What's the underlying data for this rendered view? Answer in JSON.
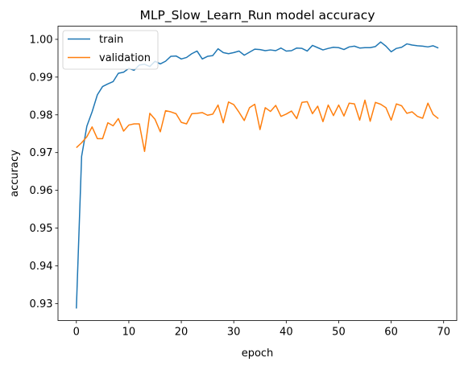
{
  "chart_data": {
    "type": "line",
    "title": "MLP_Slow_Learn_Run model accuracy",
    "xlabel": "epoch",
    "ylabel": "accuracy",
    "xlim": [
      -3.5,
      72.5
    ],
    "ylim": [
      0.9255,
      1.0035
    ],
    "xticks": [
      0,
      10,
      20,
      30,
      40,
      50,
      60,
      70
    ],
    "yticks": [
      0.93,
      0.94,
      0.95,
      0.96,
      0.97,
      0.98,
      0.99,
      1.0
    ],
    "ytick_labels": [
      "0.93",
      "0.94",
      "0.95",
      "0.96",
      "0.97",
      "0.98",
      "0.99",
      "1.00"
    ],
    "grid": false,
    "legend_position": "top-left",
    "x": [
      0,
      1,
      2,
      3,
      4,
      5,
      6,
      7,
      8,
      9,
      10,
      11,
      12,
      13,
      14,
      15,
      16,
      17,
      18,
      19,
      20,
      21,
      22,
      23,
      24,
      25,
      26,
      27,
      28,
      29,
      30,
      31,
      32,
      33,
      34,
      35,
      36,
      37,
      38,
      39,
      40,
      41,
      42,
      43,
      44,
      45,
      46,
      47,
      48,
      49,
      50,
      51,
      52,
      53,
      54,
      55,
      56,
      57,
      58,
      59,
      60,
      61,
      62,
      63,
      64,
      65,
      66,
      67,
      68,
      69
    ],
    "series": [
      {
        "name": "train",
        "color": "#1f77b4",
        "values": [
          0.9287,
          0.969,
          0.977,
          0.9808,
          0.9853,
          0.9875,
          0.9882,
          0.9888,
          0.991,
          0.9913,
          0.9923,
          0.9918,
          0.9932,
          0.9934,
          0.9928,
          0.9942,
          0.9935,
          0.9942,
          0.9955,
          0.9956,
          0.9948,
          0.9952,
          0.9962,
          0.9969,
          0.9948,
          0.9955,
          0.9957,
          0.9975,
          0.9965,
          0.9962,
          0.9965,
          0.9969,
          0.9958,
          0.9966,
          0.9974,
          0.9973,
          0.997,
          0.9972,
          0.997,
          0.9977,
          0.9969,
          0.997,
          0.9977,
          0.9976,
          0.9969,
          0.9984,
          0.9978,
          0.9972,
          0.9976,
          0.9979,
          0.9978,
          0.9973,
          0.998,
          0.9982,
          0.9977,
          0.9978,
          0.9978,
          0.9981,
          0.9993,
          0.9982,
          0.9967,
          0.9976,
          0.9979,
          0.9988,
          0.9985,
          0.9983,
          0.9982,
          0.998,
          0.9983,
          0.9977
        ]
      },
      {
        "name": "validation",
        "color": "#ff7f0e",
        "values": [
          0.9713,
          0.9726,
          0.9742,
          0.9768,
          0.9737,
          0.9737,
          0.9779,
          0.9771,
          0.979,
          0.9757,
          0.9773,
          0.9776,
          0.9776,
          0.9703,
          0.9804,
          0.9788,
          0.9755,
          0.9811,
          0.9808,
          0.9803,
          0.978,
          0.9776,
          0.9803,
          0.9804,
          0.9806,
          0.9799,
          0.9802,
          0.9826,
          0.9779,
          0.9834,
          0.9827,
          0.9807,
          0.9785,
          0.9819,
          0.9828,
          0.9761,
          0.9819,
          0.9809,
          0.9825,
          0.9796,
          0.9802,
          0.981,
          0.979,
          0.9833,
          0.9835,
          0.9803,
          0.9823,
          0.9782,
          0.9826,
          0.9798,
          0.9826,
          0.9797,
          0.9831,
          0.9829,
          0.9786,
          0.9839,
          0.9783,
          0.9833,
          0.9828,
          0.9819,
          0.9786,
          0.9829,
          0.9824,
          0.9804,
          0.9808,
          0.9796,
          0.9791,
          0.9831,
          0.9801,
          0.979
        ]
      }
    ]
  }
}
